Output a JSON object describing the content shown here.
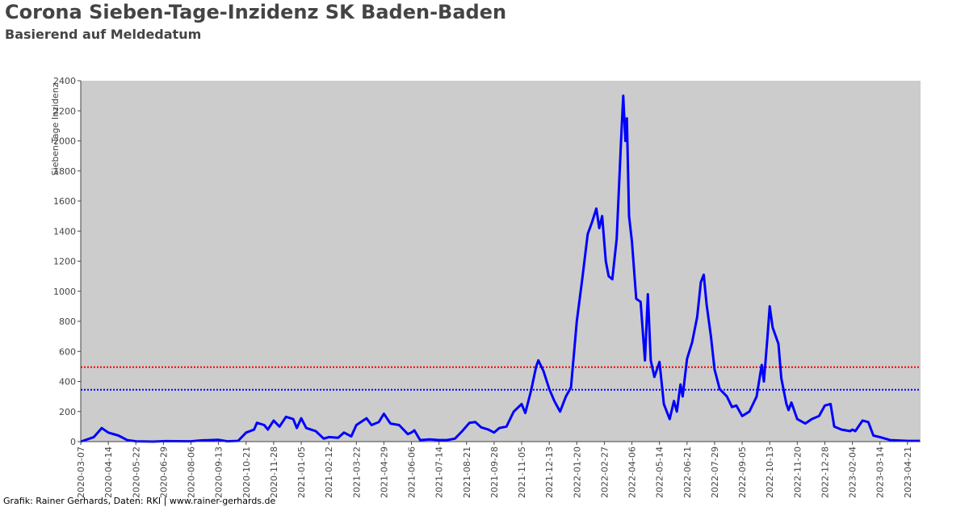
{
  "chart_data": {
    "type": "line",
    "title": "Corona Sieben-Tage-Inzidenz SK Baden-Baden",
    "subtitle": "Basierend auf Meldedatum",
    "y_label": "Sieben-Tage Inzidenz",
    "footer": "Grafik: Rainer Gerhards, Daten: RKI | www.rainer-gerhards.de",
    "background": "#cccccc",
    "xlim": [
      "2020-03-07",
      "2023-05-09"
    ],
    "xticks": [
      "2020-03-07",
      "2020-04-14",
      "2020-05-22",
      "2020-06-29",
      "2020-08-06",
      "2020-09-13",
      "2020-10-21",
      "2020-11-28",
      "2021-01-05",
      "2021-02-12",
      "2021-03-22",
      "2021-04-29",
      "2021-06-06",
      "2021-07-14",
      "2021-08-21",
      "2021-09-28",
      "2021-11-05",
      "2021-12-13",
      "2022-01-20",
      "2022-02-27",
      "2022-04-06",
      "2022-05-14",
      "2022-06-21",
      "2022-07-29",
      "2022-09-05",
      "2022-10-13",
      "2022-11-20",
      "2022-12-28",
      "2023-02-04",
      "2023-03-14",
      "2023-04-21"
    ],
    "ylim": [
      0,
      2400
    ],
    "yticks": [
      0,
      200,
      400,
      600,
      800,
      1000,
      1200,
      1400,
      1600,
      1800,
      2000,
      2200,
      2400
    ],
    "reference_lines": [
      {
        "value": 495,
        "color": "#ff0000"
      },
      {
        "value": 345,
        "color": "#0000ff"
      }
    ],
    "series": [
      {
        "color": "#0000ff",
        "x": [
          "2020-03-07",
          "2020-03-25",
          "2020-04-05",
          "2020-04-14",
          "2020-04-28",
          "2020-05-10",
          "2020-05-22",
          "2020-06-15",
          "2020-07-01",
          "2020-08-06",
          "2020-08-20",
          "2020-09-13",
          "2020-09-25",
          "2020-10-10",
          "2020-10-21",
          "2020-11-01",
          "2020-11-05",
          "2020-11-15",
          "2020-11-20",
          "2020-11-28",
          "2020-12-06",
          "2020-12-15",
          "2020-12-25",
          "2020-12-30",
          "2021-01-05",
          "2021-01-12",
          "2021-01-25",
          "2021-02-05",
          "2021-02-12",
          "2021-02-25",
          "2021-03-05",
          "2021-03-15",
          "2021-03-22",
          "2021-04-05",
          "2021-04-12",
          "2021-04-22",
          "2021-04-29",
          "2021-05-08",
          "2021-05-20",
          "2021-06-01",
          "2021-06-06",
          "2021-06-10",
          "2021-06-18",
          "2021-07-01",
          "2021-07-14",
          "2021-07-25",
          "2021-08-05",
          "2021-08-15",
          "2021-08-25",
          "2021-09-02",
          "2021-09-10",
          "2021-09-20",
          "2021-09-28",
          "2021-10-05",
          "2021-10-15",
          "2021-10-25",
          "2021-11-05",
          "2021-11-10",
          "2021-11-18",
          "2021-11-25",
          "2021-11-28",
          "2021-12-05",
          "2021-12-13",
          "2021-12-20",
          "2021-12-28",
          "2022-01-05",
          "2022-01-12",
          "2022-01-20",
          "2022-01-28",
          "2022-02-04",
          "2022-02-10",
          "2022-02-16",
          "2022-02-20",
          "2022-02-24",
          "2022-03-01",
          "2022-03-05",
          "2022-03-10",
          "2022-03-16",
          "2022-03-22",
          "2022-03-25",
          "2022-03-28",
          "2022-03-30",
          "2022-04-02",
          "2022-04-06",
          "2022-04-12",
          "2022-04-18",
          "2022-04-24",
          "2022-04-28",
          "2022-05-02",
          "2022-05-07",
          "2022-05-14",
          "2022-05-20",
          "2022-05-28",
          "2022-06-03",
          "2022-06-07",
          "2022-06-12",
          "2022-06-15",
          "2022-06-21",
          "2022-06-28",
          "2022-07-05",
          "2022-07-10",
          "2022-07-14",
          "2022-07-18",
          "2022-07-24",
          "2022-07-29",
          "2022-08-05",
          "2022-08-15",
          "2022-08-22",
          "2022-08-28",
          "2022-09-05",
          "2022-09-15",
          "2022-09-25",
          "2022-10-02",
          "2022-10-05",
          "2022-10-10",
          "2022-10-13",
          "2022-10-17",
          "2022-10-25",
          "2022-10-29",
          "2022-11-05",
          "2022-11-08",
          "2022-11-12",
          "2022-11-20",
          "2022-12-01",
          "2022-12-10",
          "2022-12-20",
          "2022-12-28",
          "2023-01-05",
          "2023-01-10",
          "2023-01-20",
          "2023-02-01",
          "2023-02-04",
          "2023-02-08",
          "2023-02-18",
          "2023-02-26",
          "2023-03-05",
          "2023-03-14",
          "2023-03-28",
          "2023-04-21",
          "2023-05-08"
        ],
        "values": [
          0,
          30,
          90,
          60,
          40,
          10,
          2,
          0,
          3,
          2,
          8,
          12,
          2,
          5,
          60,
          80,
          125,
          110,
          80,
          140,
          100,
          165,
          150,
          90,
          155,
          90,
          70,
          20,
          30,
          25,
          60,
          35,
          110,
          155,
          110,
          130,
          185,
          120,
          110,
          50,
          60,
          75,
          10,
          15,
          10,
          10,
          20,
          70,
          125,
          130,
          95,
          80,
          60,
          90,
          100,
          200,
          250,
          190,
          340,
          500,
          540,
          470,
          350,
          270,
          200,
          300,
          360,
          800,
          1100,
          1380,
          1460,
          1550,
          1420,
          1500,
          1200,
          1100,
          1080,
          1350,
          2000,
          2300,
          2000,
          2150,
          1500,
          1330,
          950,
          930,
          540,
          980,
          540,
          430,
          530,
          250,
          150,
          270,
          200,
          380,
          300,
          550,
          660,
          830,
          1060,
          1110,
          910,
          700,
          480,
          350,
          300,
          230,
          240,
          170,
          200,
          300,
          510,
          400,
          700,
          900,
          760,
          650,
          420,
          250,
          210,
          260,
          150,
          120,
          150,
          170,
          240,
          250,
          100,
          80,
          70,
          80,
          70,
          140,
          130,
          40,
          30,
          10,
          5,
          5
        ]
      }
    ]
  }
}
